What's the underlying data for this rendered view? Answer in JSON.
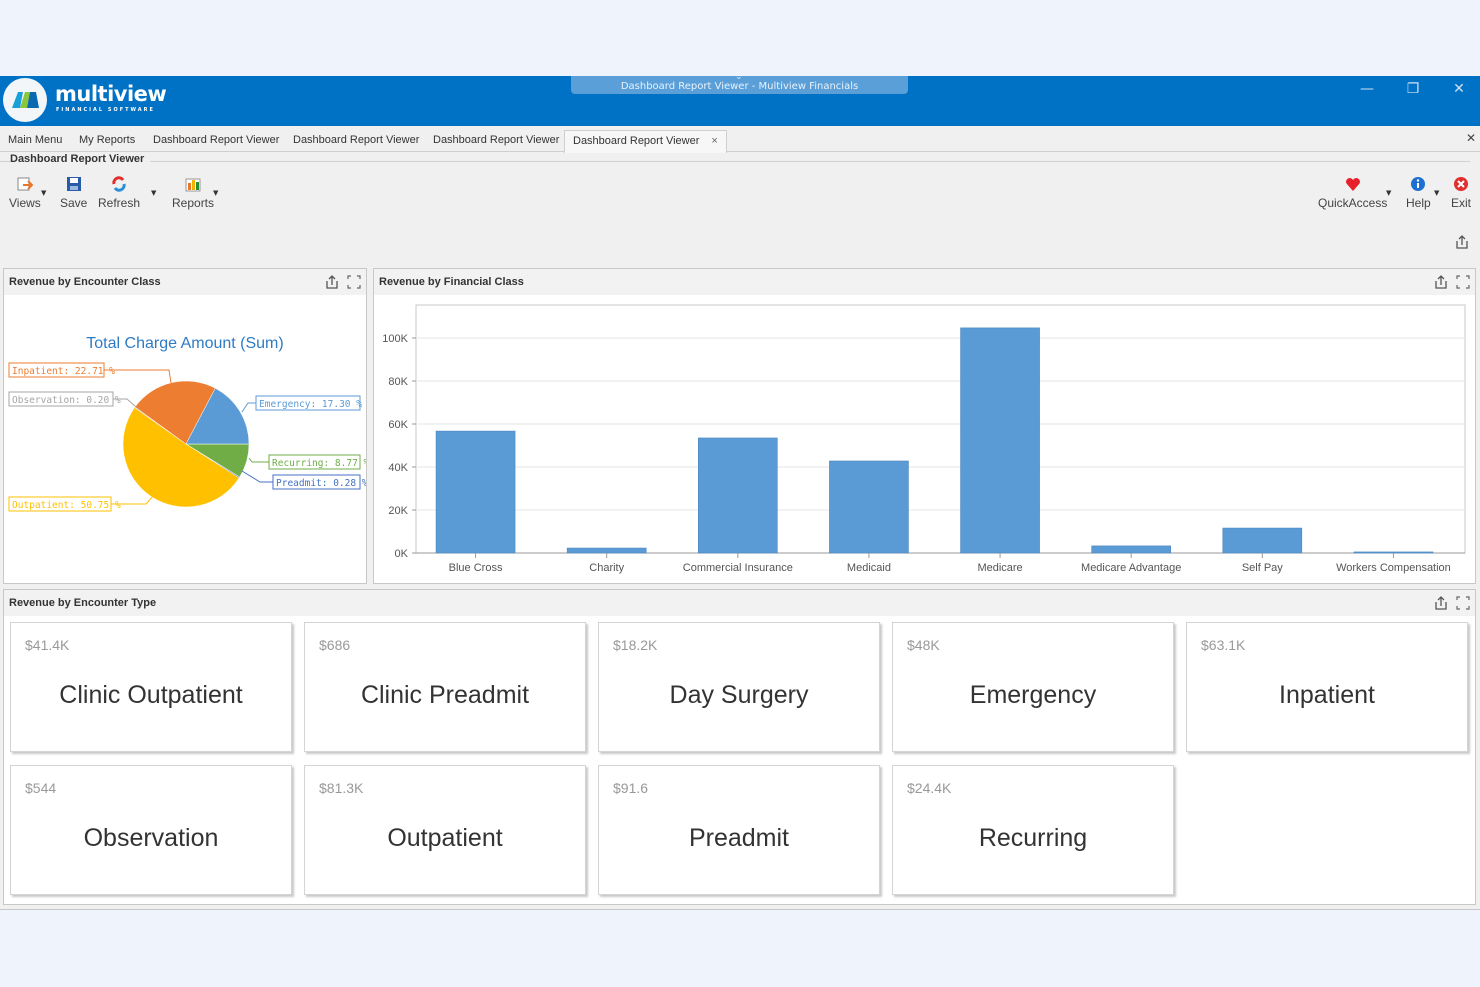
{
  "window": {
    "title": "Dashboard Report Viewer - Multiview Financials",
    "logo_word": "multiview",
    "logo_sub": "FINANCIAL SOFTWARE",
    "controls": [
      "minimize",
      "restore",
      "close"
    ]
  },
  "tabs": [
    {
      "label": "Main Menu",
      "active": false
    },
    {
      "label": "My Reports",
      "active": false
    },
    {
      "label": "Dashboard Report Viewer",
      "active": false
    },
    {
      "label": "Dashboard Report Viewer",
      "active": false
    },
    {
      "label": "Dashboard Report Viewer",
      "active": false
    },
    {
      "label": "Dashboard Report Viewer",
      "active": true,
      "close": "×"
    }
  ],
  "ribbon": {
    "group_title": "Dashboard Report Viewer",
    "left_buttons": [
      {
        "label": "Views",
        "icon": "views-icon",
        "dropdown": true
      },
      {
        "label": "Save",
        "icon": "save-icon",
        "dropdown": false
      },
      {
        "label": "Refresh",
        "icon": "refresh-icon",
        "dropdown": true
      },
      {
        "label": "Reports",
        "icon": "reports-icon",
        "dropdown": true
      }
    ],
    "right_buttons": [
      {
        "label": "QuickAccess",
        "icon": "heart-icon",
        "dropdown": true
      },
      {
        "label": "Help",
        "icon": "info-icon",
        "dropdown": true
      },
      {
        "label": "Exit",
        "icon": "exit-icon",
        "dropdown": false
      }
    ]
  },
  "panels": {
    "encounter_class": {
      "title": "Revenue by Encounter Class",
      "chart_title": "Total Charge Amount (Sum)",
      "labels": {
        "inpatient": "Inpatient: 22.71 %",
        "observation": "Observation: 0.20 %",
        "emergency": "Emergency: 17.30 %",
        "recurring": "Recurring: 8.77 %",
        "preadmit": "Preadmit: 0.28 %",
        "outpatient": "Outpatient: 50.75 %"
      }
    },
    "financial_class": {
      "title": "Revenue by Financial Class"
    },
    "encounter_type": {
      "title": "Revenue by Encounter Type",
      "tiles": [
        {
          "value": "$41.4K",
          "name": "Clinic Outpatient"
        },
        {
          "value": "$686",
          "name": "Clinic Preadmit"
        },
        {
          "value": "$18.2K",
          "name": "Day Surgery"
        },
        {
          "value": "$48K",
          "name": "Emergency"
        },
        {
          "value": "$63.1K",
          "name": "Inpatient"
        },
        {
          "value": "$544",
          "name": "Observation"
        },
        {
          "value": "$81.3K",
          "name": "Outpatient"
        },
        {
          "value": "$91.6",
          "name": "Preadmit"
        },
        {
          "value": "$24.4K",
          "name": "Recurring"
        }
      ]
    }
  },
  "colors": {
    "titlebar": "#0072c6",
    "bar": "#5b9bd5",
    "emergency": "#5b9bd5",
    "recurring": "#70ad47",
    "preadmit": "#4472c4",
    "outpatient": "#ffc000",
    "observation": "#a5a5a5",
    "inpatient": "#ed7d31"
  },
  "chart_data": [
    {
      "type": "pie",
      "title": "Total Charge Amount (Sum)",
      "categories": [
        "Recurring",
        "Preadmit",
        "Outpatient",
        "Observation",
        "Inpatient",
        "Emergency"
      ],
      "values": [
        8.77,
        0.28,
        50.75,
        0.2,
        22.71,
        17.3
      ],
      "unit": "%",
      "legend": "inline labels"
    },
    {
      "type": "bar",
      "title": "Revenue by Financial Class",
      "categories": [
        "Blue Cross",
        "Charity",
        "Commercial Insurance",
        "Medicaid",
        "Medicare",
        "Medicare Advantage",
        "Self Pay",
        "Workers Compensation"
      ],
      "values": [
        56.7,
        2.3,
        53.5,
        42.8,
        104.7,
        3.3,
        11.6,
        0.5
      ],
      "value_unit": "K",
      "yticks": [
        "0K",
        "20K",
        "40K",
        "60K",
        "80K",
        "100K"
      ],
      "ylim": [
        0,
        115
      ],
      "xlabel": "",
      "ylabel": "",
      "grid": true
    }
  ]
}
